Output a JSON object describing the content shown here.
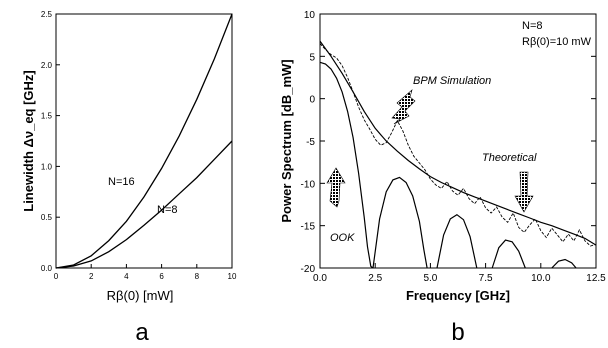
{
  "chart_data": [
    {
      "type": "line",
      "panel_label": "a",
      "ylabel": "Linewidth Δν_eq [GHz]",
      "xlabel": "Rβ(0)   [mW]",
      "xlim": [
        0,
        10
      ],
      "ylim": [
        0,
        2.5
      ],
      "xticks": [
        0,
        2,
        4,
        6,
        8,
        10
      ],
      "yticks": [
        0.0,
        0.5,
        1.0,
        1.5,
        2.0,
        2.5
      ],
      "series": [
        {
          "name": "N=16",
          "x": [
            0,
            1,
            2,
            3,
            4,
            5,
            6,
            7,
            8,
            9,
            10
          ],
          "y": [
            0,
            0.03,
            0.12,
            0.27,
            0.46,
            0.7,
            0.98,
            1.3,
            1.66,
            2.06,
            2.5
          ]
        },
        {
          "name": "N=8",
          "x": [
            0,
            1,
            2,
            3,
            4,
            5,
            6,
            7,
            8,
            9,
            10
          ],
          "y": [
            0,
            0.02,
            0.07,
            0.16,
            0.28,
            0.42,
            0.57,
            0.73,
            0.89,
            1.07,
            1.25
          ]
        }
      ]
    },
    {
      "type": "line",
      "panel_label": "b",
      "ylabel": "Power Spectrum [dB_mW]",
      "xlabel": "Frequency [GHz]",
      "xlim": [
        0,
        12.5
      ],
      "ylim": [
        -20,
        10
      ],
      "xticks": [
        0.0,
        2.5,
        5.0,
        7.5,
        10.0,
        12.5
      ],
      "yticks": [
        10,
        5,
        0,
        -5,
        -10,
        -15,
        -20
      ],
      "annotations": [
        "N=8",
        "Rβ(0)=10 mW"
      ],
      "series": [
        {
          "name": "OOK",
          "style": "solid",
          "lobes": [
            {
              "x": [
                0,
                0.25,
                0.5,
                0.75,
                1.0,
                1.25,
                1.5,
                1.75,
                2.0,
                2.15,
                2.3,
                2.4
              ],
              "y": [
                4.3,
                4.1,
                3.5,
                2.4,
                0.8,
                -1.5,
                -4.6,
                -8.8,
                -14.0,
                -17.5,
                -19.8,
                -20
              ]
            },
            {
              "x": [
                2.4,
                2.7,
                3.0,
                3.3,
                3.6,
                3.9,
                4.2,
                4.5,
                4.7,
                4.85
              ],
              "y": [
                -20,
                -14.2,
                -11.0,
                -9.6,
                -9.3,
                -9.9,
                -11.5,
                -14.5,
                -17.8,
                -20
              ]
            },
            {
              "x": [
                5.3,
                5.6,
                5.9,
                6.2,
                6.5,
                6.8,
                7.1
              ],
              "y": [
                -20,
                -16.1,
                -14.2,
                -13.7,
                -14.3,
                -16.3,
                -20
              ]
            },
            {
              "x": [
                7.8,
                8.1,
                8.4,
                8.7,
                9.0,
                9.3
              ],
              "y": [
                -20,
                -17.6,
                -16.7,
                -16.9,
                -18.0,
                -20
              ]
            },
            {
              "x": [
                10.5,
                10.8,
                11.1,
                11.4,
                11.6
              ],
              "y": [
                -20,
                -19.2,
                -19.0,
                -19.4,
                -20
              ]
            }
          ]
        },
        {
          "name": "Theoretical",
          "style": "solid",
          "x": [
            0,
            0.5,
            1.0,
            1.5,
            2.0,
            2.5,
            3.0,
            3.5,
            4.0,
            4.5,
            5.0,
            5.5,
            6.0,
            6.5,
            7.0,
            7.5,
            8.0,
            8.5,
            9.0,
            9.5,
            10.0,
            10.5,
            11.0,
            11.5,
            12.0,
            12.5
          ],
          "y": [
            6.8,
            5.0,
            3.0,
            0.8,
            -1.5,
            -3.5,
            -5.0,
            -6.2,
            -7.3,
            -8.3,
            -9.2,
            -9.9,
            -10.5,
            -11.1,
            -11.6,
            -12.1,
            -12.6,
            -13.1,
            -13.6,
            -14.1,
            -14.6,
            -15.0,
            -15.5,
            -16.0,
            -16.5,
            -17.3
          ]
        },
        {
          "name": "BPM Simulation",
          "style": "dashed",
          "x": [
            0,
            0.25,
            0.5,
            0.75,
            1.0,
            1.25,
            1.5,
            1.75,
            2.0,
            2.25,
            2.5,
            2.75,
            3.0,
            3.25,
            3.5,
            3.75,
            4.0,
            4.25,
            4.5,
            4.75,
            5.0,
            5.25,
            5.5,
            5.75,
            6.0,
            6.25,
            6.5,
            6.75,
            7.0,
            7.25,
            7.5,
            7.75,
            8.0,
            8.25,
            8.5,
            8.75,
            9.0,
            9.25,
            9.5,
            9.75,
            10.0,
            10.25,
            10.5,
            10.75,
            11.0,
            11.25,
            11.5,
            11.75,
            12.0,
            12.25,
            12.5
          ],
          "y": [
            6.5,
            5.8,
            5.2,
            4.8,
            3.9,
            2.5,
            0.8,
            -1.0,
            -2.5,
            -3.6,
            -4.8,
            -5.5,
            -5.2,
            -4.0,
            -2.6,
            -3.8,
            -5.5,
            -6.8,
            -7.6,
            -8.4,
            -9.5,
            -10.2,
            -10.6,
            -9.8,
            -10.9,
            -11.4,
            -10.6,
            -11.8,
            -12.4,
            -11.6,
            -12.9,
            -13.5,
            -12.8,
            -14.0,
            -14.6,
            -13.5,
            -15.2,
            -15.8,
            -14.9,
            -14.2,
            -15.6,
            -16.4,
            -15.3,
            -16.1,
            -16.9,
            -16.0,
            -16.8,
            -15.5,
            -16.8,
            -17.4,
            -17.2
          ]
        }
      ],
      "arrows": [
        "BPM Simulation",
        "Theoretical",
        "OOK"
      ]
    }
  ]
}
